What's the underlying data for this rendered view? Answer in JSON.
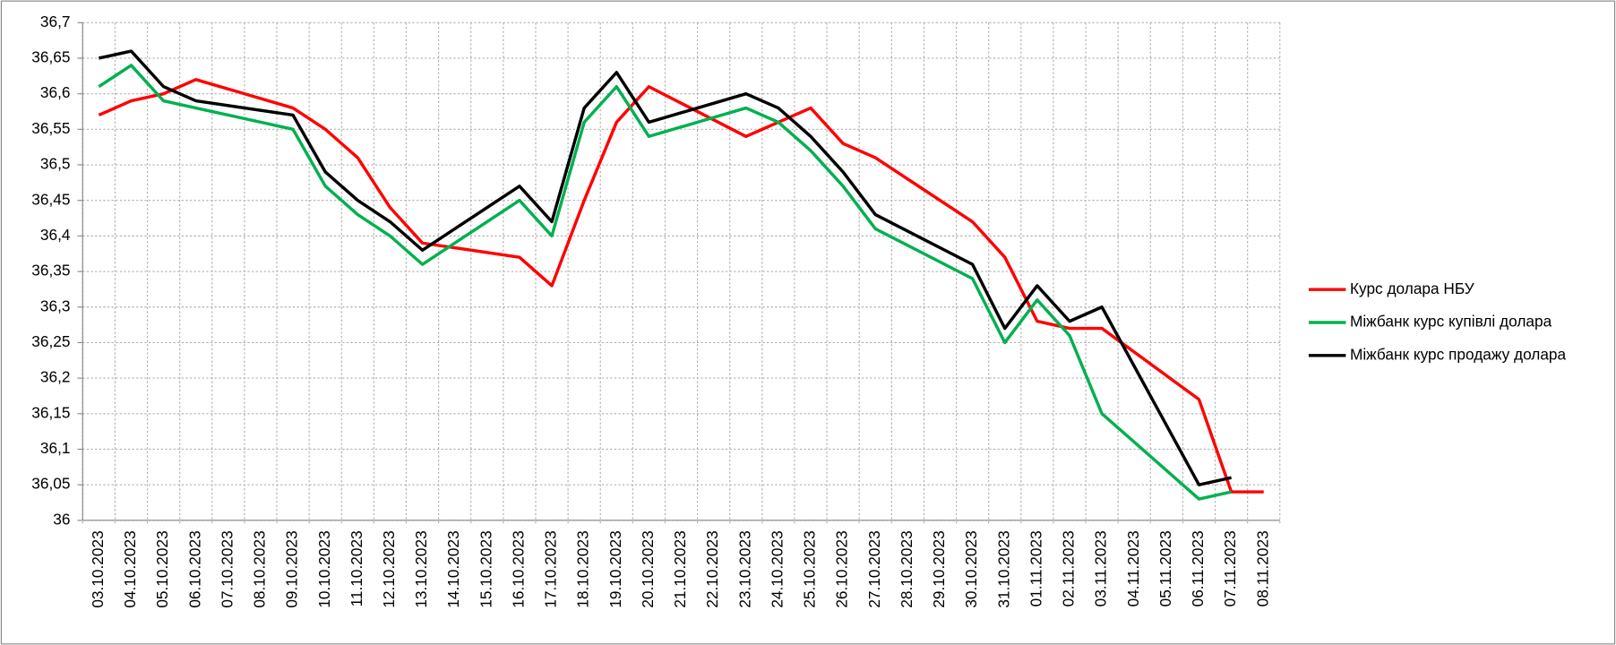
{
  "chart_data": {
    "type": "line",
    "categories": [
      "03.10.2023",
      "04.10.2023",
      "05.10.2023",
      "06.10.2023",
      "07.10.2023",
      "08.10.2023",
      "09.10.2023",
      "10.10.2023",
      "11.10.2023",
      "12.10.2023",
      "13.10.2023",
      "14.10.2023",
      "15.10.2023",
      "16.10.2023",
      "17.10.2023",
      "18.10.2023",
      "19.10.2023",
      "20.10.2023",
      "21.10.2023",
      "22.10.2023",
      "23.10.2023",
      "24.10.2023",
      "25.10.2023",
      "26.10.2023",
      "27.10.2023",
      "28.10.2023",
      "29.10.2023",
      "30.10.2023",
      "31.10.2023",
      "01.11.2023",
      "02.11.2023",
      "03.11.2023",
      "04.11.2023",
      "05.11.2023",
      "06.11.2023",
      "07.11.2023",
      "08.11.2023"
    ],
    "series": [
      {
        "name": "Курс долара НБУ",
        "color": "#ff0000",
        "x": [
          "03.10.2023",
          "04.10.2023",
          "05.10.2023",
          "06.10.2023",
          "09.10.2023",
          "10.10.2023",
          "11.10.2023",
          "12.10.2023",
          "13.10.2023",
          "16.10.2023",
          "17.10.2023",
          "18.10.2023",
          "19.10.2023",
          "20.10.2023",
          "23.10.2023",
          "24.10.2023",
          "25.10.2023",
          "26.10.2023",
          "27.10.2023",
          "30.10.2023",
          "31.10.2023",
          "01.11.2023",
          "02.11.2023",
          "03.11.2023",
          "06.11.2023",
          "07.11.2023",
          "08.11.2023"
        ],
        "values": [
          36.57,
          36.59,
          36.6,
          36.62,
          36.58,
          36.55,
          36.51,
          36.44,
          36.39,
          36.37,
          36.33,
          36.45,
          36.56,
          36.61,
          36.54,
          36.56,
          36.58,
          36.53,
          36.51,
          36.42,
          36.37,
          36.28,
          36.27,
          36.27,
          36.17,
          36.04,
          36.04
        ]
      },
      {
        "name": "Міжбанк курс купівлі долара",
        "color": "#00b050",
        "x": [
          "03.10.2023",
          "04.10.2023",
          "05.10.2023",
          "06.10.2023",
          "09.10.2023",
          "10.10.2023",
          "11.10.2023",
          "12.10.2023",
          "13.10.2023",
          "16.10.2023",
          "17.10.2023",
          "18.10.2023",
          "19.10.2023",
          "20.10.2023",
          "23.10.2023",
          "24.10.2023",
          "25.10.2023",
          "26.10.2023",
          "27.10.2023",
          "30.10.2023",
          "31.10.2023",
          "01.11.2023",
          "02.11.2023",
          "03.11.2023",
          "06.11.2023",
          "07.11.2023"
        ],
        "values": [
          36.61,
          36.64,
          36.59,
          36.58,
          36.55,
          36.47,
          36.43,
          36.4,
          36.36,
          36.45,
          36.4,
          36.56,
          36.61,
          36.54,
          36.58,
          36.56,
          36.52,
          36.47,
          36.41,
          36.34,
          36.25,
          36.31,
          36.26,
          36.15,
          36.03,
          36.04
        ]
      },
      {
        "name": "Міжбанк курс продажу долара",
        "color": "#000000",
        "x": [
          "03.10.2023",
          "04.10.2023",
          "05.10.2023",
          "06.10.2023",
          "09.10.2023",
          "10.10.2023",
          "11.10.2023",
          "12.10.2023",
          "13.10.2023",
          "16.10.2023",
          "17.10.2023",
          "18.10.2023",
          "19.10.2023",
          "20.10.2023",
          "23.10.2023",
          "24.10.2023",
          "25.10.2023",
          "26.10.2023",
          "27.10.2023",
          "30.10.2023",
          "31.10.2023",
          "01.11.2023",
          "02.11.2023",
          "03.11.2023",
          "06.11.2023",
          "07.11.2023"
        ],
        "values": [
          36.65,
          36.66,
          36.61,
          36.59,
          36.57,
          36.49,
          36.45,
          36.42,
          36.38,
          36.47,
          36.42,
          36.58,
          36.63,
          36.56,
          36.6,
          36.58,
          36.54,
          36.49,
          36.43,
          36.36,
          36.27,
          36.33,
          36.28,
          36.3,
          36.05,
          36.06
        ]
      }
    ],
    "ylim": [
      36,
      36.7
    ],
    "yticks": [
      36,
      {
        "value": 36.05,
        "label": "36,05"
      },
      {
        "value": 36.1,
        "label": "36,1"
      },
      {
        "value": 36.15,
        "label": "36,15"
      },
      {
        "value": 36.2,
        "label": "36,2"
      },
      {
        "value": 36.25,
        "label": "36,25"
      },
      {
        "value": 36.3,
        "label": "36,3"
      },
      {
        "value": 36.35,
        "label": "36,35"
      },
      {
        "value": 36.4,
        "label": "36,4"
      },
      {
        "value": 36.45,
        "label": "36,45"
      },
      {
        "value": 36.5,
        "label": "36,5"
      },
      {
        "value": 36.55,
        "label": "36,55"
      },
      {
        "value": 36.6,
        "label": "36,6"
      },
      {
        "value": 36.65,
        "label": "36,65"
      },
      {
        "value": 36.7,
        "label": "36,7"
      }
    ],
    "grid": true,
    "legend": "right"
  }
}
